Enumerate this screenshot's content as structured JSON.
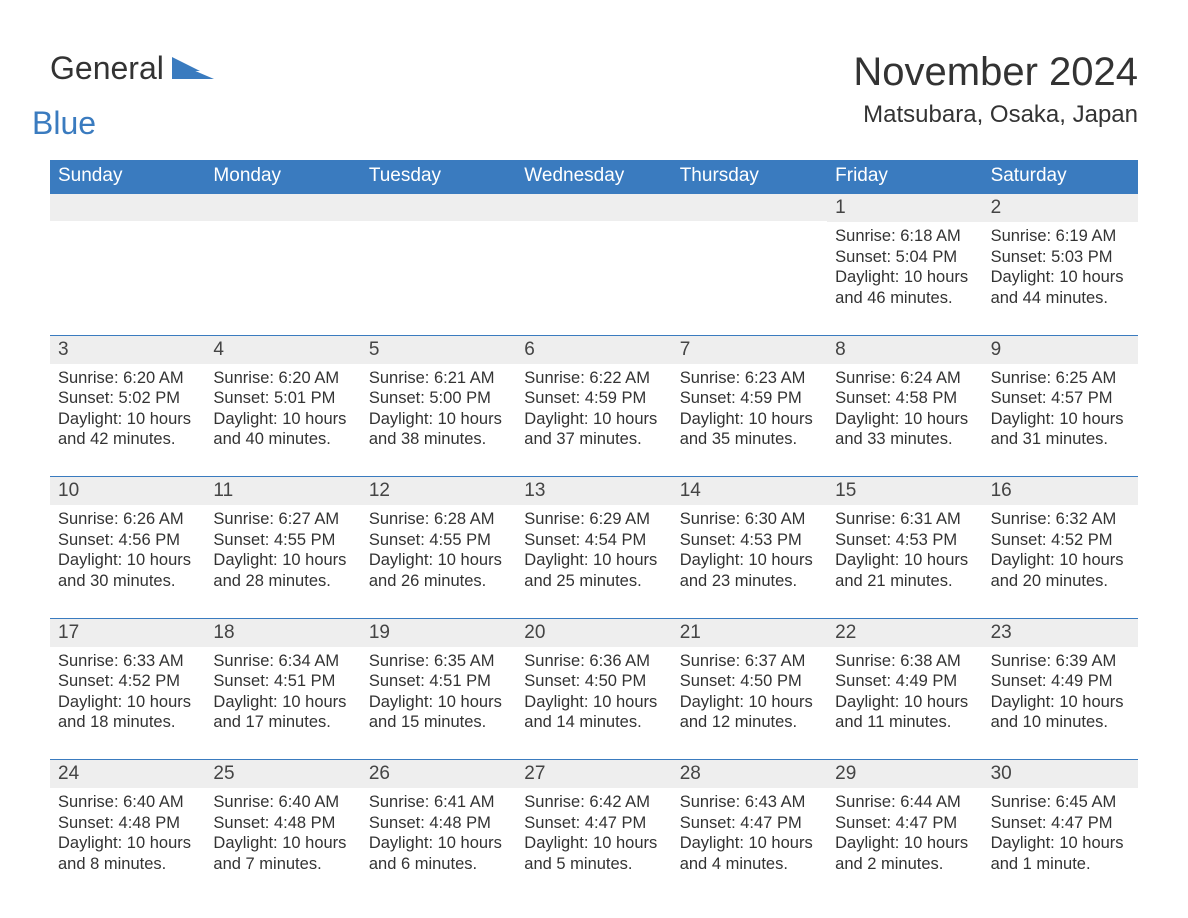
{
  "logo": {
    "word1": "General",
    "word2": "Blue"
  },
  "title": "November 2024",
  "location": "Matsubara, Osaka, Japan",
  "colors": {
    "header_bg": "#3a7bbf",
    "header_text": "#ffffff",
    "daynum_bg": "#eeeeee",
    "text": "#333333",
    "accent_line": "#3a7bbf",
    "background": "#ffffff",
    "logo_blue": "#3a7bbf"
  },
  "weekdays": [
    "Sunday",
    "Monday",
    "Tuesday",
    "Wednesday",
    "Thursday",
    "Friday",
    "Saturday"
  ],
  "weeks": [
    [
      {
        "n": "",
        "sunrise": "",
        "sunset": "",
        "daylight": ""
      },
      {
        "n": "",
        "sunrise": "",
        "sunset": "",
        "daylight": ""
      },
      {
        "n": "",
        "sunrise": "",
        "sunset": "",
        "daylight": ""
      },
      {
        "n": "",
        "sunrise": "",
        "sunset": "",
        "daylight": ""
      },
      {
        "n": "",
        "sunrise": "",
        "sunset": "",
        "daylight": ""
      },
      {
        "n": "1",
        "sunrise": "Sunrise: 6:18 AM",
        "sunset": "Sunset: 5:04 PM",
        "daylight": "Daylight: 10 hours and 46 minutes."
      },
      {
        "n": "2",
        "sunrise": "Sunrise: 6:19 AM",
        "sunset": "Sunset: 5:03 PM",
        "daylight": "Daylight: 10 hours and 44 minutes."
      }
    ],
    [
      {
        "n": "3",
        "sunrise": "Sunrise: 6:20 AM",
        "sunset": "Sunset: 5:02 PM",
        "daylight": "Daylight: 10 hours and 42 minutes."
      },
      {
        "n": "4",
        "sunrise": "Sunrise: 6:20 AM",
        "sunset": "Sunset: 5:01 PM",
        "daylight": "Daylight: 10 hours and 40 minutes."
      },
      {
        "n": "5",
        "sunrise": "Sunrise: 6:21 AM",
        "sunset": "Sunset: 5:00 PM",
        "daylight": "Daylight: 10 hours and 38 minutes."
      },
      {
        "n": "6",
        "sunrise": "Sunrise: 6:22 AM",
        "sunset": "Sunset: 4:59 PM",
        "daylight": "Daylight: 10 hours and 37 minutes."
      },
      {
        "n": "7",
        "sunrise": "Sunrise: 6:23 AM",
        "sunset": "Sunset: 4:59 PM",
        "daylight": "Daylight: 10 hours and 35 minutes."
      },
      {
        "n": "8",
        "sunrise": "Sunrise: 6:24 AM",
        "sunset": "Sunset: 4:58 PM",
        "daylight": "Daylight: 10 hours and 33 minutes."
      },
      {
        "n": "9",
        "sunrise": "Sunrise: 6:25 AM",
        "sunset": "Sunset: 4:57 PM",
        "daylight": "Daylight: 10 hours and 31 minutes."
      }
    ],
    [
      {
        "n": "10",
        "sunrise": "Sunrise: 6:26 AM",
        "sunset": "Sunset: 4:56 PM",
        "daylight": "Daylight: 10 hours and 30 minutes."
      },
      {
        "n": "11",
        "sunrise": "Sunrise: 6:27 AM",
        "sunset": "Sunset: 4:55 PM",
        "daylight": "Daylight: 10 hours and 28 minutes."
      },
      {
        "n": "12",
        "sunrise": "Sunrise: 6:28 AM",
        "sunset": "Sunset: 4:55 PM",
        "daylight": "Daylight: 10 hours and 26 minutes."
      },
      {
        "n": "13",
        "sunrise": "Sunrise: 6:29 AM",
        "sunset": "Sunset: 4:54 PM",
        "daylight": "Daylight: 10 hours and 25 minutes."
      },
      {
        "n": "14",
        "sunrise": "Sunrise: 6:30 AM",
        "sunset": "Sunset: 4:53 PM",
        "daylight": "Daylight: 10 hours and 23 minutes."
      },
      {
        "n": "15",
        "sunrise": "Sunrise: 6:31 AM",
        "sunset": "Sunset: 4:53 PM",
        "daylight": "Daylight: 10 hours and 21 minutes."
      },
      {
        "n": "16",
        "sunrise": "Sunrise: 6:32 AM",
        "sunset": "Sunset: 4:52 PM",
        "daylight": "Daylight: 10 hours and 20 minutes."
      }
    ],
    [
      {
        "n": "17",
        "sunrise": "Sunrise: 6:33 AM",
        "sunset": "Sunset: 4:52 PM",
        "daylight": "Daylight: 10 hours and 18 minutes."
      },
      {
        "n": "18",
        "sunrise": "Sunrise: 6:34 AM",
        "sunset": "Sunset: 4:51 PM",
        "daylight": "Daylight: 10 hours and 17 minutes."
      },
      {
        "n": "19",
        "sunrise": "Sunrise: 6:35 AM",
        "sunset": "Sunset: 4:51 PM",
        "daylight": "Daylight: 10 hours and 15 minutes."
      },
      {
        "n": "20",
        "sunrise": "Sunrise: 6:36 AM",
        "sunset": "Sunset: 4:50 PM",
        "daylight": "Daylight: 10 hours and 14 minutes."
      },
      {
        "n": "21",
        "sunrise": "Sunrise: 6:37 AM",
        "sunset": "Sunset: 4:50 PM",
        "daylight": "Daylight: 10 hours and 12 minutes."
      },
      {
        "n": "22",
        "sunrise": "Sunrise: 6:38 AM",
        "sunset": "Sunset: 4:49 PM",
        "daylight": "Daylight: 10 hours and 11 minutes."
      },
      {
        "n": "23",
        "sunrise": "Sunrise: 6:39 AM",
        "sunset": "Sunset: 4:49 PM",
        "daylight": "Daylight: 10 hours and 10 minutes."
      }
    ],
    [
      {
        "n": "24",
        "sunrise": "Sunrise: 6:40 AM",
        "sunset": "Sunset: 4:48 PM",
        "daylight": "Daylight: 10 hours and 8 minutes."
      },
      {
        "n": "25",
        "sunrise": "Sunrise: 6:40 AM",
        "sunset": "Sunset: 4:48 PM",
        "daylight": "Daylight: 10 hours and 7 minutes."
      },
      {
        "n": "26",
        "sunrise": "Sunrise: 6:41 AM",
        "sunset": "Sunset: 4:48 PM",
        "daylight": "Daylight: 10 hours and 6 minutes."
      },
      {
        "n": "27",
        "sunrise": "Sunrise: 6:42 AM",
        "sunset": "Sunset: 4:47 PM",
        "daylight": "Daylight: 10 hours and 5 minutes."
      },
      {
        "n": "28",
        "sunrise": "Sunrise: 6:43 AM",
        "sunset": "Sunset: 4:47 PM",
        "daylight": "Daylight: 10 hours and 4 minutes."
      },
      {
        "n": "29",
        "sunrise": "Sunrise: 6:44 AM",
        "sunset": "Sunset: 4:47 PM",
        "daylight": "Daylight: 10 hours and 2 minutes."
      },
      {
        "n": "30",
        "sunrise": "Sunrise: 6:45 AM",
        "sunset": "Sunset: 4:47 PM",
        "daylight": "Daylight: 10 hours and 1 minute."
      }
    ]
  ]
}
